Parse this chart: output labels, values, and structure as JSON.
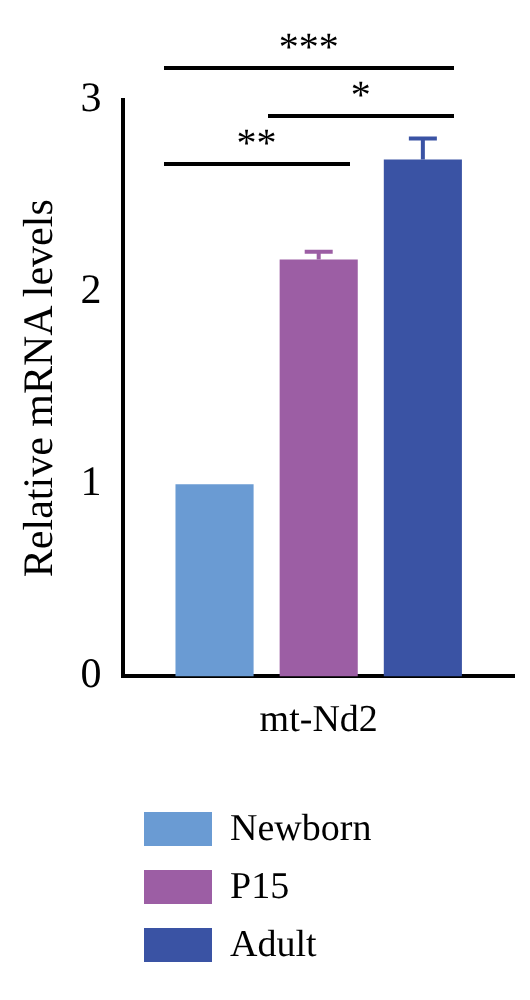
{
  "chart_data": {
    "type": "bar",
    "ylabel": "Relative mRNA levels",
    "categories": [
      "mt-Nd2"
    ],
    "series": [
      {
        "name": "Newborn",
        "color": "#6a9bd3",
        "values": [
          1.0
        ]
      },
      {
        "name": "P15",
        "color": "#9c5ea4",
        "values": [
          2.17
        ],
        "errors": [
          0.04
        ]
      },
      {
        "name": "Adult",
        "color": "#3a53a4",
        "values": [
          2.69
        ],
        "errors": [
          0.11
        ]
      }
    ],
    "ylim": [
      0,
      3
    ],
    "yticks": [
      0,
      1,
      2,
      3
    ],
    "grid": false,
    "legend": "bottom",
    "annotations": [
      "***",
      "*",
      "**"
    ]
  }
}
